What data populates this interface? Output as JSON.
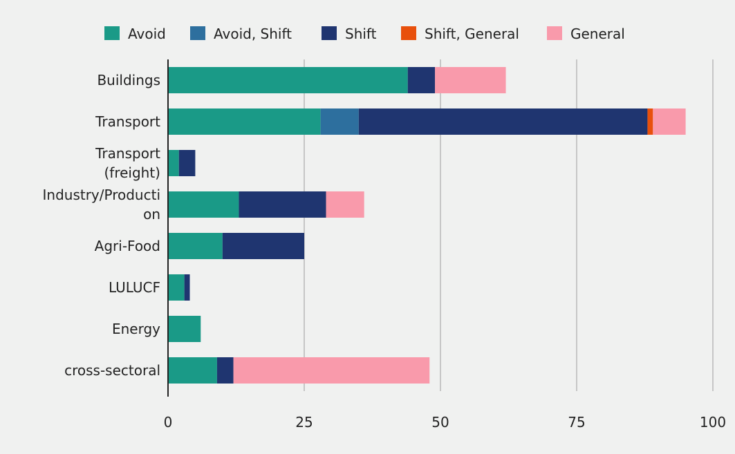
{
  "chart_data": {
    "type": "bar",
    "orientation": "horizontal",
    "stacked": true,
    "title": "",
    "xlabel": "",
    "ylabel": "",
    "xlim": [
      0,
      100
    ],
    "xticks": [
      0,
      25,
      50,
      75,
      100
    ],
    "grid": true,
    "legend_position": "top",
    "categories": [
      [
        "Buildings"
      ],
      [
        "Transport"
      ],
      [
        "Transport",
        "(freight)"
      ],
      [
        "Industry/Producti",
        "on"
      ],
      [
        "Agri-Food"
      ],
      [
        "LULUCF"
      ],
      [
        "Energy"
      ],
      [
        "cross-sectoral"
      ]
    ],
    "series": [
      {
        "name": "Avoid",
        "color": "#1a9a87",
        "values": [
          44,
          28,
          2,
          13,
          10,
          3,
          6,
          9
        ]
      },
      {
        "name": "Avoid, Shift",
        "color": "#2d6f9e",
        "values": [
          0,
          7,
          0,
          0,
          0,
          0,
          0,
          0
        ]
      },
      {
        "name": "Shift",
        "color": "#1f3570",
        "values": [
          5,
          53,
          3,
          16,
          15,
          1,
          0,
          3
        ]
      },
      {
        "name": "Shift, General",
        "color": "#e8500c",
        "values": [
          0,
          1,
          0,
          0,
          0,
          0,
          0,
          0
        ]
      },
      {
        "name": "General",
        "color": "#f99aab",
        "values": [
          13,
          6,
          0,
          7,
          0,
          0,
          0,
          36
        ]
      }
    ]
  }
}
